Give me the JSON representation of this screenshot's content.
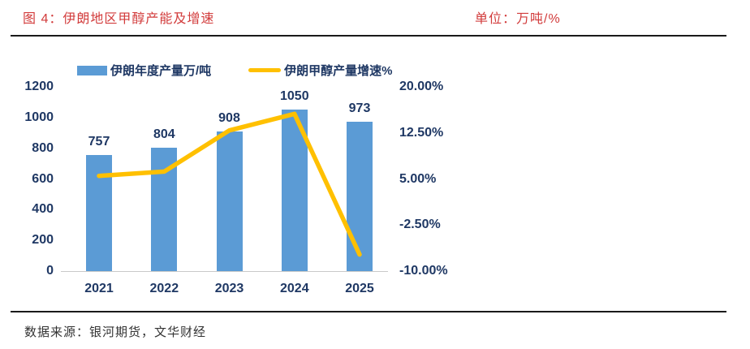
{
  "header": {
    "title": "图 4：伊朗地区甲醇产能及增速",
    "unit_label": "单位：万吨/%"
  },
  "legend": {
    "items": [
      {
        "label": "伊朗年度产量万/吨",
        "swatch": "bar-swatch",
        "color": "#5b9bd5"
      },
      {
        "label": "伊朗甲醇产量增速%",
        "swatch": "line-swatch",
        "color": "#ffc000"
      }
    ]
  },
  "footer": {
    "source": "数据来源：银河期货，文华财经"
  },
  "colors": {
    "bar_fill": "#5b9bd5",
    "line_stroke": "#ffc000",
    "axis_text": "#1f3864",
    "title_red": "#d23b3b",
    "divider": "#1a1a1a",
    "baseline": "#c9c9c9"
  },
  "chart_data": {
    "type": "bar",
    "subtype": "bar+line combo",
    "categories": [
      "2021",
      "2022",
      "2023",
      "2024",
      "2025"
    ],
    "series": [
      {
        "name": "伊朗年度产量万/吨",
        "type": "bar",
        "axis": "left",
        "values": [
          757,
          804,
          908,
          1050,
          973
        ],
        "data_labels": [
          "757",
          "804",
          "908",
          "1050",
          "973"
        ],
        "color": "#5b9bd5"
      },
      {
        "name": "伊朗甲醇产量增速%",
        "type": "line",
        "axis": "right",
        "values": [
          5.5,
          6.2,
          12.9,
          15.6,
          -7.3
        ],
        "color": "#ffc000"
      }
    ],
    "left_axis": {
      "range": [
        0,
        1200
      ],
      "tick_values": [
        0,
        200,
        400,
        600,
        800,
        1000,
        1200
      ],
      "tick_labels": [
        "0",
        "200",
        "400",
        "600",
        "800",
        "1000",
        "1200"
      ]
    },
    "right_axis": {
      "range": [
        -10,
        20
      ],
      "tick_values": [
        20,
        12.5,
        5,
        -2.5,
        -10
      ],
      "tick_labels": [
        "20.00%",
        "12.50%",
        "5.00%",
        "-2.50%",
        "-10.00%"
      ]
    },
    "grid": false,
    "legend_position": "top"
  }
}
